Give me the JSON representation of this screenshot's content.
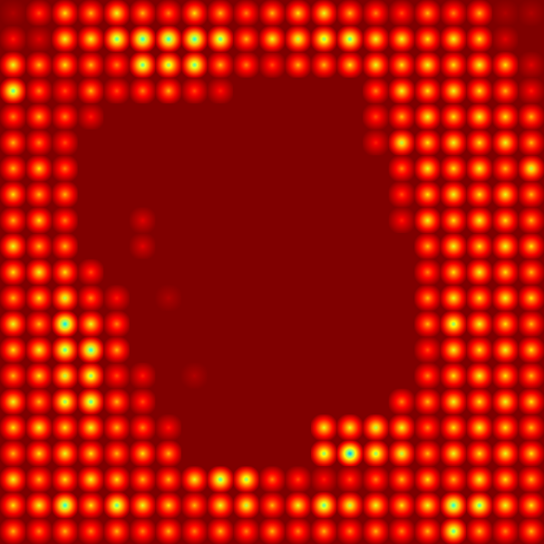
{
  "chart_data": {
    "type": "heatmap",
    "tick_labels": false,
    "zlim": [
      0,
      1
    ],
    "z": [
      [
        0.95,
        0.8,
        0.65,
        0.7,
        0.6,
        0.7,
        0.75,
        0.65,
        0.7,
        0.75,
        0.7,
        0.65,
        0.6,
        0.7,
        0.75,
        0.8,
        0.7,
        0.75,
        0.7,
        0.95,
        0.95
      ],
      [
        0.85,
        0.9,
        0.6,
        0.6,
        0.45,
        0.4,
        0.4,
        0.4,
        0.45,
        0.7,
        0.6,
        0.55,
        0.5,
        0.45,
        0.6,
        0.6,
        0.65,
        0.6,
        0.65,
        0.9,
        1
      ],
      [
        0.6,
        0.7,
        0.65,
        0.7,
        0.75,
        0.45,
        0.5,
        0.45,
        0.7,
        0.75,
        0.8,
        0.7,
        0.7,
        0.65,
        0.6,
        0.65,
        0.6,
        0.65,
        0.6,
        0.65,
        0.9
      ],
      [
        0.45,
        0.75,
        0.8,
        0.7,
        0.8,
        0.75,
        0.7,
        0.8,
        0.85,
        1,
        1,
        1,
        1,
        1,
        0.75,
        0.6,
        0.65,
        0.6,
        0.65,
        0.7,
        0.85
      ],
      [
        0.75,
        0.7,
        0.75,
        0.85,
        1,
        1,
        1,
        1,
        1,
        1,
        1,
        1,
        1,
        1,
        0.8,
        0.7,
        0.6,
        0.65,
        0.6,
        0.65,
        0.7
      ],
      [
        0.7,
        0.75,
        0.8,
        1,
        1,
        1,
        1,
        1,
        1,
        1,
        1,
        1,
        1,
        1,
        0.85,
        0.55,
        0.65,
        0.6,
        0.65,
        0.6,
        0.7
      ],
      [
        0.7,
        0.65,
        0.75,
        1,
        1,
        1,
        1,
        1,
        1,
        1,
        1,
        1,
        1,
        1,
        1,
        0.75,
        0.6,
        0.65,
        0.6,
        0.7,
        0.55
      ],
      [
        0.65,
        0.7,
        0.7,
        1,
        1,
        1,
        1,
        1,
        1,
        1,
        1,
        1,
        1,
        1,
        1,
        0.8,
        0.65,
        0.6,
        0.65,
        0.6,
        0.7
      ],
      [
        0.7,
        0.65,
        0.75,
        1,
        1,
        0.9,
        1,
        1,
        1,
        1,
        1,
        1,
        1,
        1,
        1,
        0.85,
        0.6,
        0.65,
        0.6,
        0.65,
        0.7
      ],
      [
        0.6,
        0.7,
        0.7,
        1,
        1,
        0.9,
        1,
        1,
        1,
        1,
        1,
        1,
        1,
        1,
        1,
        1,
        0.7,
        0.6,
        0.65,
        0.6,
        0.65
      ],
      [
        0.65,
        0.6,
        0.65,
        0.8,
        1,
        1,
        1,
        1,
        1,
        1,
        1,
        1,
        1,
        1,
        1,
        1,
        0.75,
        0.65,
        0.6,
        0.65,
        0.7
      ],
      [
        0.7,
        0.65,
        0.55,
        0.75,
        0.85,
        1,
        0.95,
        1,
        1,
        1,
        1,
        1,
        1,
        1,
        1,
        1,
        0.7,
        0.6,
        0.65,
        0.6,
        0.65
      ],
      [
        0.6,
        0.7,
        0.35,
        0.6,
        0.75,
        1,
        1,
        1,
        1,
        1,
        1,
        1,
        1,
        1,
        1,
        1,
        0.7,
        0.5,
        0.6,
        0.65,
        0.7
      ],
      [
        0.65,
        0.6,
        0.45,
        0.4,
        0.7,
        1,
        1,
        1,
        1,
        1,
        1,
        1,
        1,
        1,
        1,
        1,
        0.8,
        0.6,
        0.65,
        0.6,
        0.65
      ],
      [
        0.7,
        0.65,
        0.55,
        0.5,
        0.8,
        0.85,
        1,
        0.95,
        1,
        1,
        1,
        1,
        1,
        1,
        1,
        1,
        0.75,
        0.65,
        0.6,
        0.65,
        0.7
      ],
      [
        0.6,
        0.7,
        0.5,
        0.45,
        0.7,
        0.8,
        1,
        1,
        1,
        1,
        1,
        1,
        1,
        1,
        1,
        0.75,
        0.7,
        0.6,
        0.65,
        0.6,
        0.65
      ],
      [
        0.65,
        0.6,
        0.65,
        0.6,
        0.7,
        0.75,
        0.85,
        1,
        1,
        1,
        1,
        1,
        0.6,
        0.6,
        0.55,
        0.6,
        0.75,
        0.65,
        0.6,
        0.65,
        0.7
      ],
      [
        0.7,
        0.65,
        0.6,
        0.65,
        0.7,
        0.65,
        0.7,
        1,
        1,
        1,
        1,
        1,
        0.5,
        0.3,
        0.5,
        0.55,
        0.7,
        0.6,
        0.65,
        0.6,
        0.65
      ],
      [
        0.6,
        0.7,
        0.65,
        0.6,
        0.65,
        0.7,
        0.7,
        0.6,
        0.45,
        0.5,
        0.75,
        0.8,
        0.85,
        0.8,
        0.75,
        0.7,
        0.65,
        0.7,
        0.6,
        0.65,
        0.7
      ],
      [
        0.65,
        0.6,
        0.4,
        0.65,
        0.45,
        0.6,
        0.65,
        0.7,
        0.6,
        0.55,
        0.7,
        0.6,
        0.45,
        0.55,
        0.6,
        0.65,
        0.6,
        0.4,
        0.45,
        0.6,
        0.65
      ],
      [
        0.7,
        0.75,
        0.7,
        0.75,
        0.7,
        0.75,
        0.7,
        0.75,
        0.7,
        0.75,
        0.7,
        0.75,
        0.7,
        0.75,
        0.7,
        0.75,
        0.7,
        0.45,
        0.7,
        0.75,
        0.7
      ]
    ]
  }
}
